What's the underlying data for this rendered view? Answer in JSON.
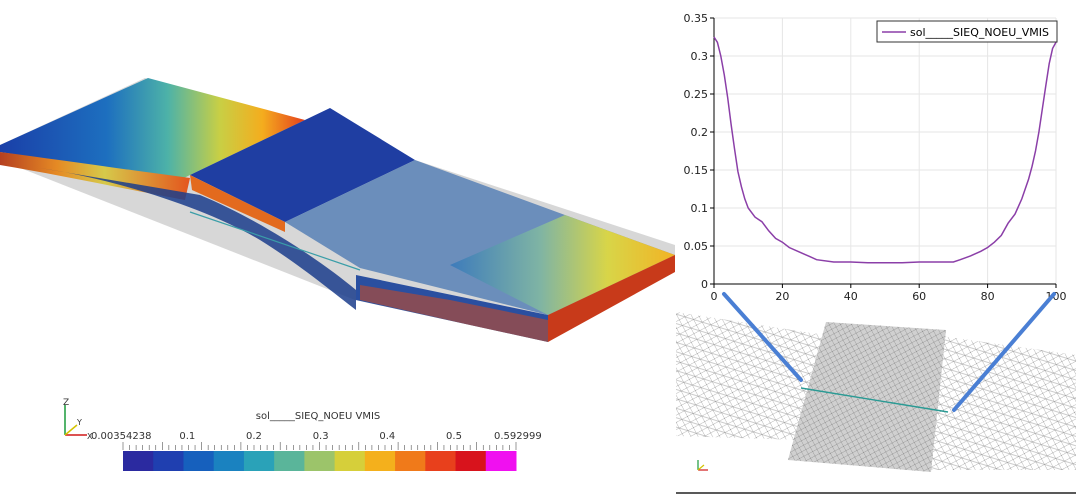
{
  "colorbar": {
    "title": "sol_____SIEQ_NOEU VMIS",
    "min_label": "0.00354238",
    "max_label": "0.592999",
    "tick_labels": [
      "0.1",
      "0.2",
      "0.3",
      "0.4",
      "0.5"
    ],
    "colors": [
      "#2b2aa0",
      "#1f3fb0",
      "#1660bd",
      "#1a82c0",
      "#2aa2b8",
      "#5ab59a",
      "#9cc46a",
      "#d6cf3a",
      "#f4b01c",
      "#f07a1a",
      "#e8401c",
      "#d8131c",
      "#f010f0"
    ]
  },
  "axes_triad": {
    "x": "X",
    "y": "Y",
    "z": "Z"
  },
  "chart_data": {
    "type": "line",
    "series": [
      {
        "name": "sol_____SIEQ_NOEU_VMIS",
        "color": "#8b3fa8",
        "x": [
          0,
          1,
          2,
          3,
          4,
          5,
          6,
          7,
          8,
          9,
          10,
          12,
          14,
          16,
          18,
          20,
          22,
          25,
          28,
          30,
          35,
          40,
          45,
          50,
          55,
          60,
          65,
          70,
          72,
          75,
          78,
          80,
          82,
          84,
          86,
          88,
          90,
          92,
          93,
          94,
          95,
          96,
          97,
          98,
          99,
          100
        ],
        "y": [
          0.325,
          0.318,
          0.3,
          0.275,
          0.245,
          0.21,
          0.178,
          0.148,
          0.128,
          0.112,
          0.1,
          0.088,
          0.082,
          0.07,
          0.06,
          0.055,
          0.048,
          0.042,
          0.036,
          0.032,
          0.029,
          0.029,
          0.028,
          0.028,
          0.028,
          0.029,
          0.029,
          0.029,
          0.032,
          0.037,
          0.043,
          0.048,
          0.055,
          0.064,
          0.08,
          0.092,
          0.112,
          0.138,
          0.155,
          0.175,
          0.2,
          0.23,
          0.26,
          0.29,
          0.31,
          0.318
        ]
      }
    ],
    "xlim": [
      0,
      100
    ],
    "ylim": [
      0,
      0.35
    ],
    "xticks": [
      "0",
      "20",
      "40",
      "60",
      "80",
      "100"
    ],
    "yticks": [
      "0",
      "0.05",
      "0.1",
      "0.15",
      "0.2",
      "0.25",
      "0.3",
      "0.35"
    ],
    "grid": true,
    "legend": "top-right"
  }
}
